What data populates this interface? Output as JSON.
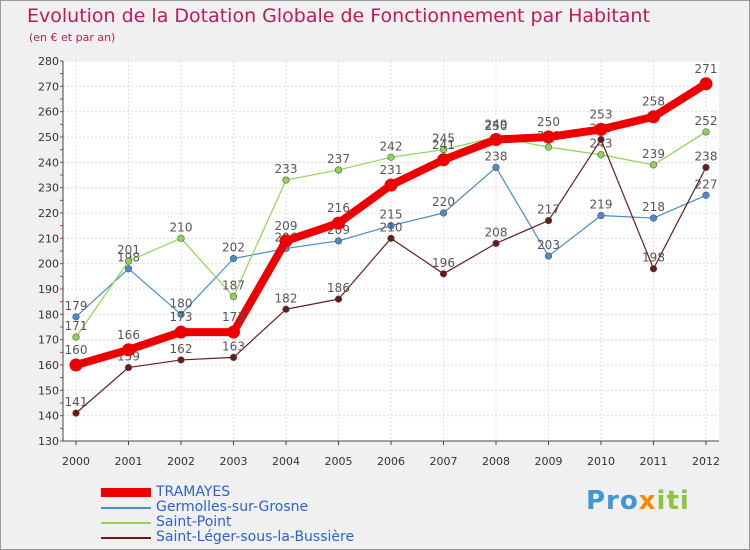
{
  "title": "Evolution de la Dotation Globale de Fonctionnement par Habitant",
  "subtitle": "(en € et par an)",
  "brand": {
    "part1": "Pro",
    "part2": "x",
    "part3": "iti"
  },
  "colors": {
    "title": "#c0185b",
    "legend_text": "#2c62c9",
    "plot_background": "#ffffff",
    "grid": "#dddddd",
    "axis": "#444444"
  },
  "chart_data": {
    "type": "line",
    "title": "Evolution de la Dotation Globale de Fonctionnement par Habitant",
    "subtitle": "(en € et par an)",
    "x": [
      2000,
      2001,
      2002,
      2003,
      2004,
      2005,
      2006,
      2007,
      2008,
      2009,
      2010,
      2011,
      2012
    ],
    "ylim": [
      130,
      280
    ],
    "yticks": [
      130,
      140,
      150,
      160,
      170,
      180,
      190,
      200,
      210,
      220,
      230,
      240,
      250,
      260,
      270,
      280
    ],
    "grid": true,
    "legend_position": "bottom-left",
    "series": [
      {
        "name": "TRAMAYES",
        "color": "#ee0000",
        "thick": true,
        "values": [
          160,
          166,
          173,
          173,
          209,
          216,
          231,
          241,
          249,
          250,
          253,
          258,
          271
        ]
      },
      {
        "name": "Germolles-sur-Grosne",
        "color": "#4a8ccb",
        "thick": false,
        "values": [
          179,
          198,
          180,
          202,
          206,
          209,
          215,
          220,
          238,
          203,
          219,
          218,
          227
        ]
      },
      {
        "name": "Saint-Point",
        "color": "#8ed455",
        "thick": false,
        "values": [
          171,
          201,
          210,
          187,
          233,
          237,
          242,
          245,
          250,
          246,
          243,
          239,
          252
        ]
      },
      {
        "name": "Saint-Léger-sous-la-Bussière",
        "color": "#6b1a1a",
        "thick": false,
        "values": [
          141,
          159,
          162,
          163,
          182,
          186,
          210,
          196,
          208,
          217,
          249,
          198,
          238
        ]
      }
    ]
  }
}
